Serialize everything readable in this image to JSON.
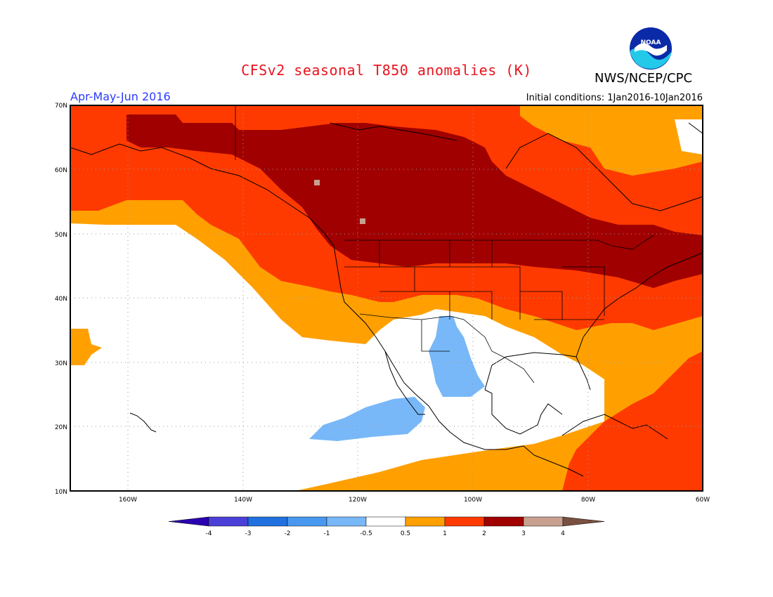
{
  "header": {
    "title": "CFSv2 seasonal T850 anomalies (K)",
    "agency": "NWS/NCEP/CPC",
    "period": "Apr-May-Jun 2016",
    "initial_conditions": "Initial conditions: 1Jan2016-10Jan2016"
  },
  "logo": {
    "icon": "noaa-logo-icon",
    "text": "NOAA"
  },
  "map": {
    "lon_range": [
      -172,
      -60
    ],
    "lat_range": [
      10,
      70
    ],
    "lat_ticks": [
      "10N",
      "20N",
      "30N",
      "40N",
      "50N",
      "60N",
      "70N"
    ],
    "lon_ticks": [
      "160W",
      "140W",
      "120W",
      "100W",
      "80W",
      "60W"
    ],
    "grid": "dotted"
  },
  "colorbar": {
    "labels": [
      "-4",
      "-3",
      "-2",
      "-1",
      "-0.5",
      "0.5",
      "1",
      "2",
      "3",
      "4"
    ],
    "colors": [
      "#2a00b0",
      "#4a40d8",
      "#2070e0",
      "#4898f0",
      "#78b8f8",
      "#ffffff",
      "#ffa000",
      "#ff3a00",
      "#a00000",
      "#c8a090",
      "#7a5040"
    ]
  }
}
